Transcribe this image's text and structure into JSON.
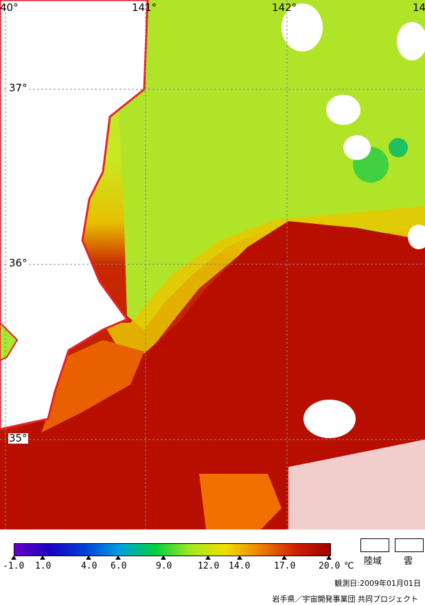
{
  "map": {
    "longitude_labels": [
      "40°",
      "141°",
      "142°",
      "14"
    ],
    "latitude_labels": [
      "37°",
      "36°",
      "35°"
    ],
    "colors": {
      "land": "#ffffff",
      "coastline": "#e8202a",
      "gridline": "#888888",
      "cold_water": "#a8e830",
      "warm_water": "#b80e00"
    }
  },
  "colorbar": {
    "tick_labels": [
      "-1.0",
      "1.0",
      "4.0",
      "6.0",
      "9.0",
      "12.0",
      "14.0",
      "17.0",
      "20.0"
    ],
    "unit": "℃",
    "gradient": [
      "#6a00c8",
      "#1800c0",
      "#0040d8",
      "#00a0e0",
      "#00d040",
      "#a0e820",
      "#f0e000",
      "#f08000",
      "#d02000",
      "#a00000"
    ]
  },
  "legend": {
    "land_label": "陸域",
    "cloud_label": "雲"
  },
  "observation_date": "観測日:2009年01月01日",
  "credit": "岩手県／宇宙開発事業団 共同プロジェクト"
}
